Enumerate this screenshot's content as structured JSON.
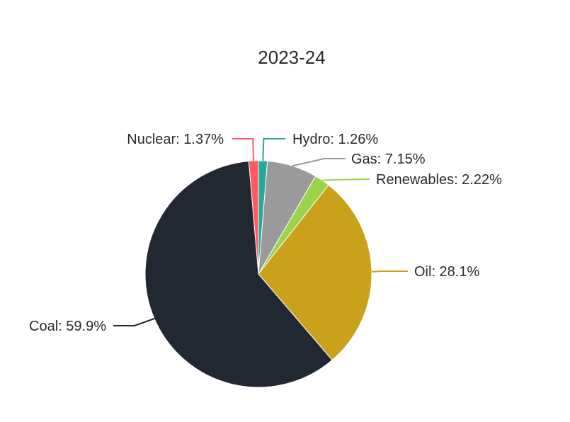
{
  "chart_data": {
    "type": "pie",
    "title": "2023-24",
    "slices": [
      {
        "label": "Nuclear",
        "value": 1.37,
        "display": "Nuclear: 1.37%",
        "color": "#ff5a5f"
      },
      {
        "label": "Hydro",
        "value": 1.26,
        "display": "Hydro: 1.26%",
        "color": "#2aa79b"
      },
      {
        "label": "Gas",
        "value": 7.15,
        "display": "Gas: 7.15%",
        "color": "#9a9a9a"
      },
      {
        "label": "Renewables",
        "value": 2.22,
        "display": "Renewables: 2.22%",
        "color": "#9bd34a"
      },
      {
        "label": "Oil",
        "value": 28.1,
        "display": "Oil: 28.1%",
        "color": "#c9a11b"
      },
      {
        "label": "Coal",
        "value": 59.9,
        "display": "Coal: 59.9%",
        "color": "#222832"
      }
    ],
    "start_angle_deg": 0,
    "direction": "clockwise",
    "legend": "none",
    "label_style": "outside with leader lines"
  }
}
